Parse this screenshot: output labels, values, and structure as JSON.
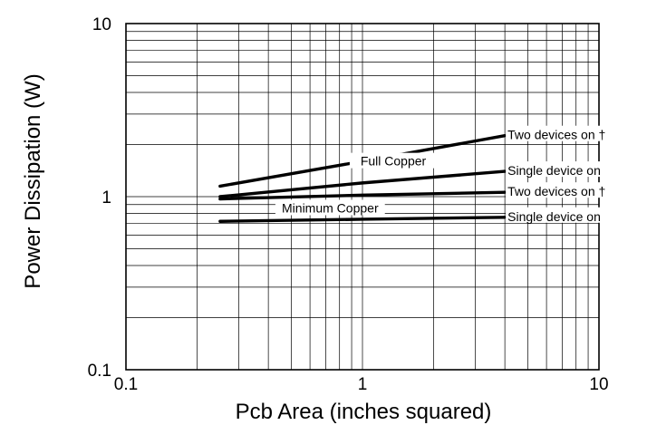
{
  "chart_data": {
    "type": "line",
    "title": "",
    "xlabel": "Pcb Area (inches squared)",
    "ylabel": "Power Dissipation (W)",
    "xscale": "log",
    "yscale": "log",
    "xlim": [
      0.1,
      10
    ],
    "ylim": [
      0.1,
      10
    ],
    "grid": true,
    "x_tick_labels": [
      "0.1",
      "1",
      "10"
    ],
    "y_tick_labels": [
      "0.1",
      "1",
      "10"
    ],
    "series": [
      {
        "name": "Two devices on †",
        "group": "Full Copper",
        "x": [
          0.25,
          1,
          4
        ],
        "y": [
          1.15,
          1.6,
          2.25
        ]
      },
      {
        "name": "Single device on",
        "group": "Full Copper",
        "x": [
          0.25,
          1,
          4
        ],
        "y": [
          1.0,
          1.2,
          1.4
        ]
      },
      {
        "name": "Two devices on †",
        "group": "Minimum Copper",
        "x": [
          0.25,
          1,
          4
        ],
        "y": [
          0.97,
          1.02,
          1.06
        ]
      },
      {
        "name": "Single device on",
        "group": "Minimum Copper",
        "x": [
          0.25,
          1,
          4
        ],
        "y": [
          0.72,
          0.74,
          0.76
        ]
      }
    ],
    "annotations": [
      {
        "text": "Full Copper",
        "x": 1.35,
        "y": 1.55
      },
      {
        "text": "Minimum Copper",
        "x": 0.73,
        "y": 0.83
      }
    ]
  }
}
